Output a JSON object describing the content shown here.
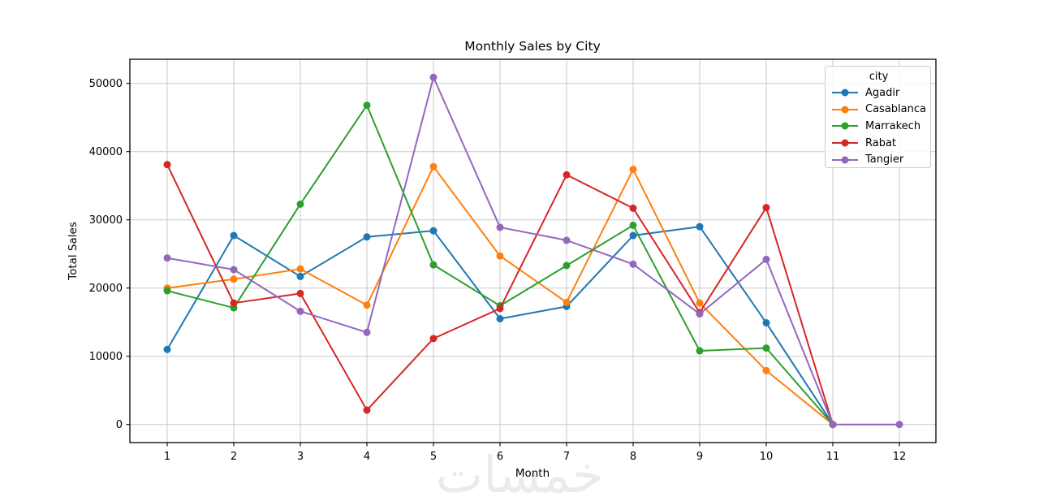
{
  "figure": {
    "title": "Monthly Sales by City",
    "xlabel": "Month",
    "ylabel": "Total Sales",
    "watermark": "خمسات"
  },
  "legend": {
    "title": "city",
    "position": "upper right"
  },
  "chart_data": {
    "type": "line",
    "title": "Monthly Sales by City",
    "xlabel": "Month",
    "ylabel": "Total Sales",
    "x_ticks": [
      1,
      2,
      3,
      4,
      5,
      6,
      7,
      8,
      9,
      10,
      11,
      12
    ],
    "y_ticks": [
      0,
      10000,
      20000,
      30000,
      40000,
      50000
    ],
    "xlim": [
      0.45,
      12.55
    ],
    "ylim": [
      -2650,
      53550
    ],
    "grid": true,
    "grid_color": "#c9c9c9",
    "legend": {
      "title": "city",
      "position": "upper right"
    },
    "marker": "o",
    "series": [
      {
        "name": "Agadir",
        "color": "#1f77b4",
        "months": [
          1,
          2,
          3,
          4,
          5,
          6,
          7,
          8,
          9,
          10,
          11
        ],
        "values": [
          11000,
          27700,
          21700,
          27500,
          28400,
          15500,
          17300,
          27700,
          29000,
          14900,
          0
        ]
      },
      {
        "name": "Casablanca",
        "color": "#ff7f0e",
        "months": [
          1,
          2,
          3,
          4,
          5,
          6,
          7,
          8,
          9,
          10,
          11
        ],
        "values": [
          20000,
          21300,
          22800,
          17500,
          37800,
          24700,
          17900,
          37400,
          17800,
          7900,
          0
        ]
      },
      {
        "name": "Marrakech",
        "color": "#2ca02c",
        "months": [
          1,
          2,
          3,
          4,
          5,
          6,
          7,
          8,
          9,
          10,
          11
        ],
        "values": [
          19600,
          17100,
          32300,
          46800,
          23400,
          17400,
          23300,
          29200,
          10800,
          11200,
          0
        ]
      },
      {
        "name": "Rabat",
        "color": "#d62728",
        "months": [
          1,
          2,
          3,
          4,
          5,
          6,
          7,
          8,
          9,
          10,
          11
        ],
        "values": [
          38100,
          17800,
          19200,
          2100,
          12600,
          17000,
          36600,
          31700,
          16400,
          31800,
          0
        ]
      },
      {
        "name": "Tangier",
        "color": "#9467bd",
        "months": [
          1,
          2,
          3,
          4,
          5,
          6,
          7,
          8,
          9,
          10,
          11,
          12
        ],
        "values": [
          24400,
          22700,
          16600,
          13500,
          50900,
          28900,
          27000,
          23500,
          16200,
          24200,
          0,
          0
        ]
      }
    ],
    "watermark": "خمسات"
  }
}
